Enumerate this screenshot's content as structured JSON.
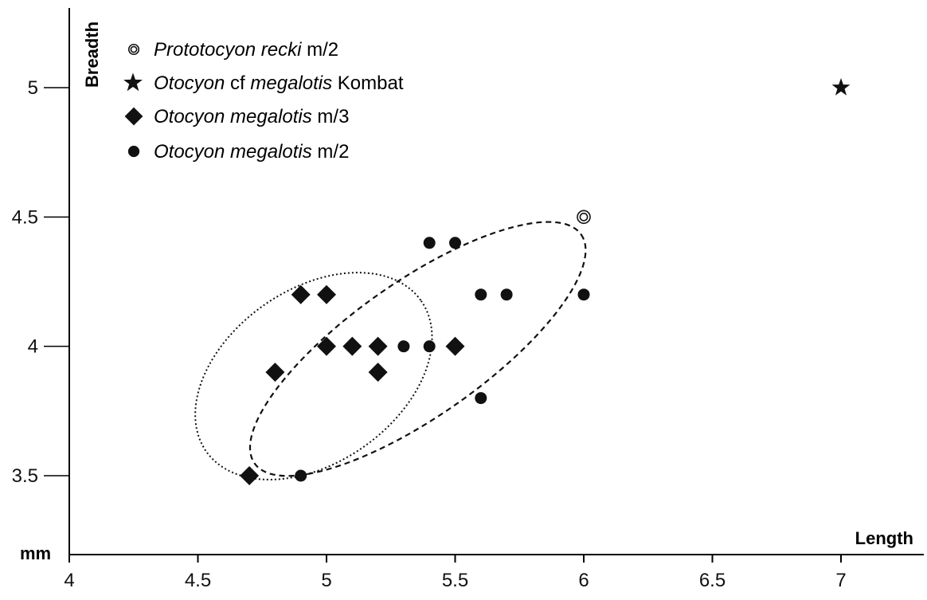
{
  "chart_data": {
    "type": "scatter",
    "xlabel": "Length",
    "ylabel": "Breadth",
    "unit_label": "mm",
    "xlim": [
      4,
      7.3
    ],
    "ylim": [
      3.3,
      5.3
    ],
    "x_ticks": [
      "4",
      "4.5",
      "5",
      "5.5",
      "6",
      "6.5",
      "7"
    ],
    "y_ticks": [
      "3.5",
      "4",
      "4.5",
      "5"
    ],
    "legend_position": "top-left",
    "series": [
      {
        "name": "Prototocyon recki m/2",
        "legend": [
          {
            "text": "Prototocyon recki",
            "italic": true
          },
          {
            "text": " m/2",
            "italic": false
          }
        ],
        "marker": "double-circle",
        "points": [
          {
            "x": 6.0,
            "y": 4.5
          }
        ]
      },
      {
        "name": "Otocyon cf megalotis Kombat",
        "legend": [
          {
            "text": "Otocyon",
            "italic": true
          },
          {
            "text": " cf ",
            "italic": false
          },
          {
            "text": "megalotis",
            "italic": true
          },
          {
            "text": " Kombat",
            "italic": false
          }
        ],
        "marker": "star",
        "points": [
          {
            "x": 7.0,
            "y": 5.0
          }
        ]
      },
      {
        "name": "Otocyon megalotis m/3",
        "legend": [
          {
            "text": "Otocyon megalotis",
            "italic": true
          },
          {
            "text": " m/3",
            "italic": false
          }
        ],
        "marker": "diamond",
        "points": [
          {
            "x": 4.7,
            "y": 3.5
          },
          {
            "x": 4.8,
            "y": 3.9
          },
          {
            "x": 4.9,
            "y": 4.2
          },
          {
            "x": 5.0,
            "y": 4.2
          },
          {
            "x": 5.0,
            "y": 4.0
          },
          {
            "x": 5.1,
            "y": 4.0
          },
          {
            "x": 5.2,
            "y": 4.0
          },
          {
            "x": 5.2,
            "y": 3.9
          },
          {
            "x": 5.5,
            "y": 4.0
          }
        ]
      },
      {
        "name": "Otocyon megalotis m/2",
        "legend": [
          {
            "text": "Otocyon megalotis",
            "italic": true
          },
          {
            "text": " m/2",
            "italic": false
          }
        ],
        "marker": "dot",
        "points": [
          {
            "x": 4.9,
            "y": 3.5
          },
          {
            "x": 5.3,
            "y": 4.0
          },
          {
            "x": 5.4,
            "y": 4.0
          },
          {
            "x": 5.4,
            "y": 4.4
          },
          {
            "x": 5.5,
            "y": 4.4
          },
          {
            "x": 5.6,
            "y": 4.2
          },
          {
            "x": 5.7,
            "y": 4.2
          },
          {
            "x": 5.6,
            "y": 3.8
          },
          {
            "x": 6.0,
            "y": 4.2
          }
        ]
      }
    ],
    "ellipses": [
      {
        "group": "Otocyon megalotis m/3",
        "style": "dotted",
        "cx": 4.95,
        "cy": 3.885,
        "rx_data": 0.51,
        "ry_data": 0.335,
        "rotation_deg": -35
      },
      {
        "group": "Otocyon megalotis m/2",
        "style": "dashed",
        "cx": 5.355,
        "cy": 3.99,
        "rx_data": 0.775,
        "ry_data": 0.26,
        "rotation_deg": -35
      }
    ],
    "colors": {
      "marker": "#111111",
      "axis": "#000000",
      "background": "#ffffff"
    }
  }
}
